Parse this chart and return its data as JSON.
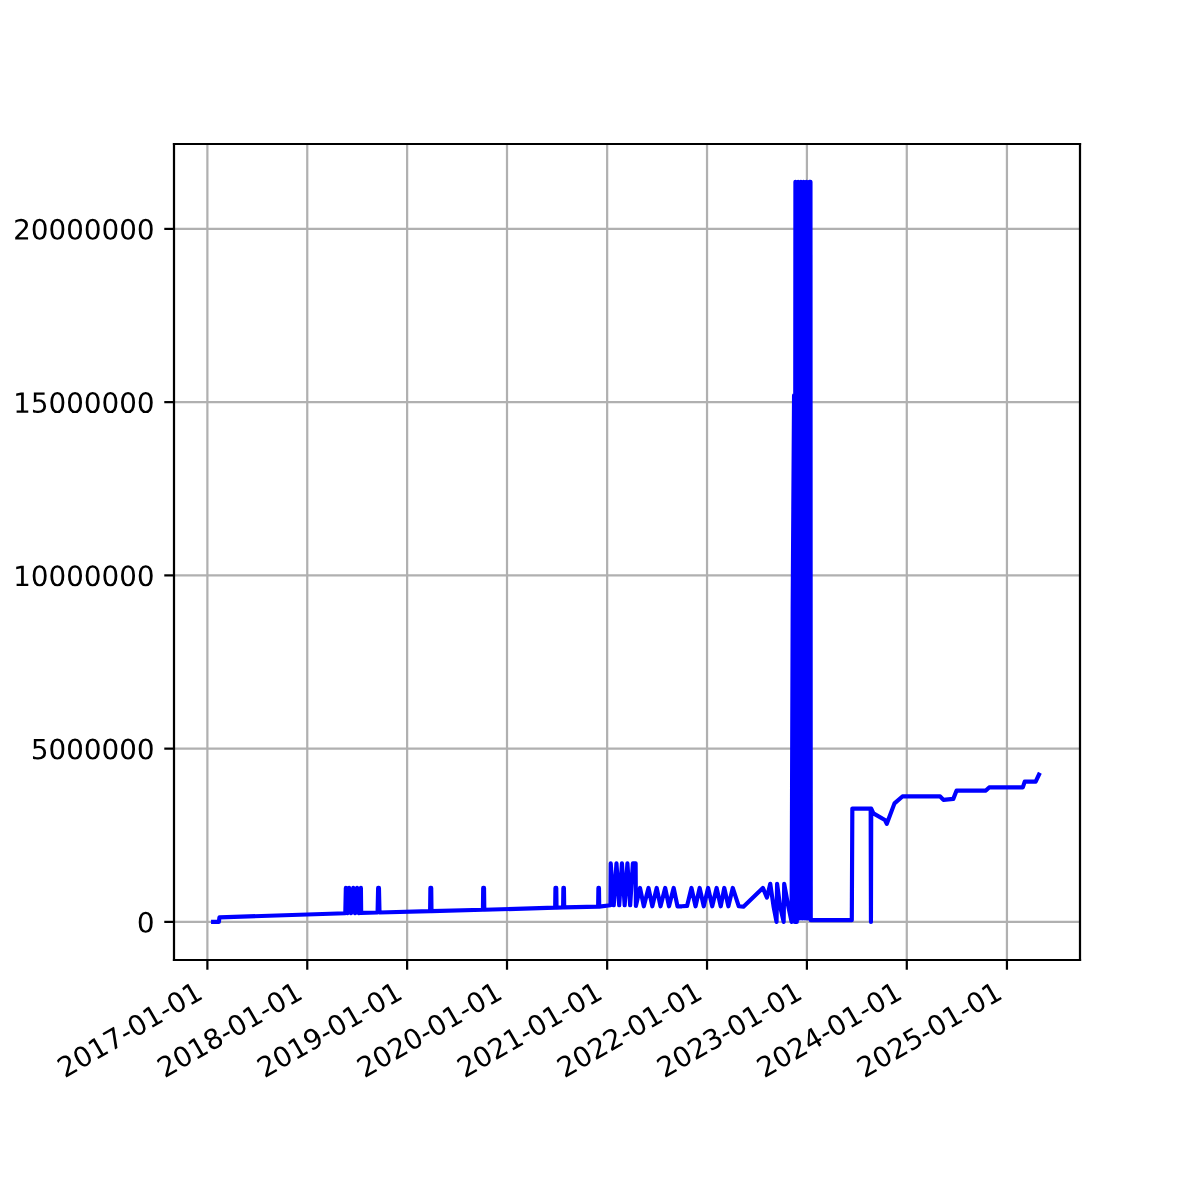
{
  "chart_data": {
    "type": "line",
    "x": [
      "2017-01-22",
      "2017-02-12",
      "2017-02-14",
      "2018-05-20",
      "2018-05-22",
      "2018-05-27",
      "2018-06-03",
      "2018-06-10",
      "2018-06-18",
      "2018-06-25",
      "2018-07-02",
      "2018-07-09",
      "2018-07-16",
      "2018-07-17",
      "2018-09-15",
      "2018-09-17",
      "2018-09-20",
      "2018-09-22",
      "2019-03-26",
      "2019-03-27",
      "2019-03-30",
      "2019-03-31",
      "2019-10-05",
      "2019-10-06",
      "2019-10-09",
      "2019-10-10",
      "2020-06-25",
      "2020-06-26",
      "2020-06-29",
      "2020-06-30",
      "2020-07-24",
      "2020-07-25",
      "2020-07-27",
      "2020-07-28",
      "2020-11-29",
      "2020-11-30",
      "2020-12-02",
      "2020-12-03",
      "2021-01-13",
      "2021-01-14",
      "2021-01-25",
      "2021-02-04",
      "2021-02-14",
      "2021-02-24",
      "2021-03-06",
      "2021-03-16",
      "2021-03-26",
      "2021-04-05",
      "2021-04-15",
      "2021-04-16",
      "2021-05-01",
      "2021-05-15",
      "2021-06-01",
      "2021-06-15",
      "2021-07-01",
      "2021-07-15",
      "2021-08-01",
      "2021-08-15",
      "2021-09-01",
      "2021-09-15",
      "2021-10-01",
      "2021-10-20",
      "2021-11-05",
      "2021-11-20",
      "2021-12-05",
      "2021-12-20",
      "2022-01-05",
      "2022-01-20",
      "2022-02-05",
      "2022-02-20",
      "2022-03-05",
      "2022-03-20",
      "2022-04-05",
      "2022-04-27",
      "2022-05-14",
      "2022-07-24",
      "2022-08-08",
      "2022-08-20",
      "2022-09-01",
      "2022-09-12",
      "2022-09-14",
      "2022-09-25",
      "2022-10-08",
      "2022-10-10",
      "2022-10-25",
      "2022-11-06",
      "2022-11-10",
      "2022-11-15",
      "2022-11-18",
      "2022-11-20",
      "2022-11-25",
      "2022-11-30",
      "2022-12-05",
      "2022-12-10",
      "2022-12-15",
      "2022-12-20",
      "2022-12-25",
      "2022-12-30",
      "2023-01-05",
      "2023-01-10",
      "2023-01-14",
      "2023-01-15",
      "2023-06-14",
      "2023-06-16",
      "2023-08-22",
      "2023-08-23",
      "2023-08-24",
      "2023-09-01",
      "2023-10-13",
      "2023-10-20",
      "2023-11-17",
      "2023-12-16",
      "2024-05-02",
      "2024-05-14",
      "2024-06-19",
      "2024-07-01",
      "2024-10-16",
      "2024-10-28",
      "2025-02-28",
      "2025-03-07",
      "2025-04-16",
      "2025-04-28"
    ],
    "series": [
      {
        "color": "#0000ff",
        "values": [
          0,
          0,
          130000,
          250000,
          980000,
          250000,
          980000,
          250000,
          980000,
          250000,
          980000,
          250000,
          980000,
          260000,
          270000,
          980000,
          980000,
          270000,
          310000,
          980000,
          980000,
          310000,
          350000,
          980000,
          980000,
          350000,
          410000,
          980000,
          980000,
          410000,
          420000,
          980000,
          980000,
          420000,
          440000,
          980000,
          980000,
          440000,
          480000,
          1690000,
          480000,
          1690000,
          480000,
          1690000,
          480000,
          1690000,
          480000,
          1690000,
          1690000,
          460000,
          980000,
          450000,
          980000,
          450000,
          980000,
          450000,
          980000,
          450000,
          980000,
          450000,
          450000,
          460000,
          980000,
          450000,
          980000,
          450000,
          980000,
          450000,
          980000,
          450000,
          980000,
          450000,
          980000,
          450000,
          440000,
          980000,
          700000,
          1100000,
          450000,
          0,
          1100000,
          450000,
          0,
          1100000,
          450000,
          0,
          9040000,
          15200000,
          0,
          21360000,
          0,
          21360000,
          100000,
          21360000,
          100000,
          21360000,
          100000,
          21360000,
          100000,
          21360000,
          21360000,
          50000,
          50000,
          3270000,
          3270000,
          0,
          3270000,
          3130000,
          2940000,
          2830000,
          3420000,
          3620000,
          3620000,
          3520000,
          3550000,
          3790000,
          3790000,
          3880000,
          3880000,
          4050000,
          4050000,
          4250000
        ]
      }
    ],
    "xlim": [
      "2016-09-01",
      "2025-09-25"
    ],
    "xticks": [
      "2017-01-01",
      "2018-01-01",
      "2019-01-01",
      "2020-01-01",
      "2021-01-01",
      "2022-01-01",
      "2023-01-01",
      "2024-01-01",
      "2025-01-01"
    ],
    "ylim": [
      -1100000,
      22450000
    ],
    "yticks": [
      0,
      5000000,
      10000000,
      15000000,
      20000000
    ],
    "grid": true,
    "marker": "none",
    "line_style": "solid"
  }
}
